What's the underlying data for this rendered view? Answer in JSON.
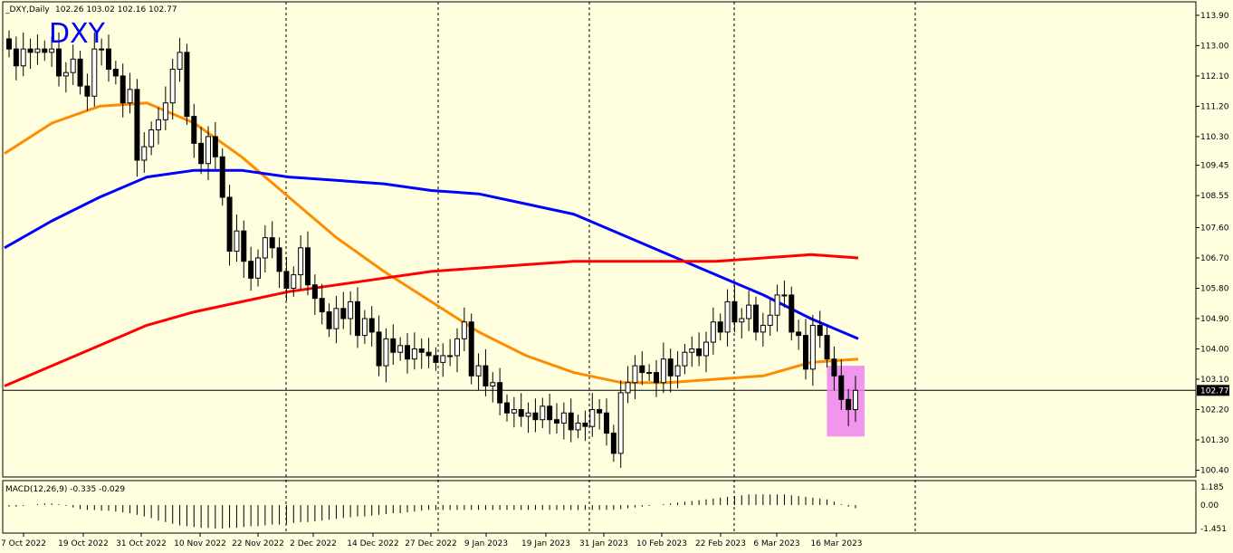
{
  "header": {
    "symbol_tf": "_DXY,Daily",
    "ohlc": "102.26 103.02 102.16 102.77",
    "big_symbol": "DXY"
  },
  "indicator": {
    "label": "MACD(12,26,9) -0.335 -0.029",
    "ticks": [
      "1.185",
      "0.00",
      "-1.451"
    ]
  },
  "colors": {
    "background": "#ffffe0",
    "ma_fast": "#ff8c00",
    "ma_mid": "#0000ff",
    "ma_slow": "#ff0000",
    "highlight": "#ee82ee",
    "current_price_badge": "#000000"
  },
  "chart_data": {
    "type": "candlestick",
    "title": "DXY",
    "timeframe": "Daily",
    "x_ticks": [
      "7 Oct 2022",
      "19 Oct 2022",
      "31 Oct 2022",
      "10 Nov 2022",
      "22 Nov 2022",
      "2 Dec 2022",
      "14 Dec 2022",
      "27 Dec 2022",
      "9 Jan 2023",
      "19 Jan 2023",
      "31 Jan 2023",
      "10 Feb 2023",
      "22 Feb 2023",
      "6 Mar 2023",
      "16 Mar 2023"
    ],
    "y_ticks": [
      "113.90",
      "113.00",
      "112.10",
      "111.20",
      "110.30",
      "109.45",
      "108.55",
      "107.60",
      "106.70",
      "105.80",
      "104.90",
      "104.00",
      "103.10",
      "102.20",
      "101.30",
      "100.40"
    ],
    "ylim": [
      100.2,
      114.3
    ],
    "current_price": "102.77",
    "close": [
      112.9,
      112.4,
      112.9,
      112.8,
      112.9,
      112.8,
      112.9,
      112.1,
      112.2,
      112.6,
      111.8,
      111.5,
      112.9,
      112.9,
      112.3,
      112.1,
      111.3,
      111.7,
      109.6,
      110.0,
      110.5,
      110.8,
      111.3,
      112.3,
      112.8,
      110.9,
      110.1,
      109.5,
      110.3,
      109.7,
      108.5,
      106.9,
      107.5,
      106.6,
      106.1,
      106.7,
      107.3,
      107.0,
      106.3,
      105.8,
      106.2,
      107.0,
      105.9,
      105.5,
      105.1,
      104.6,
      105.2,
      104.9,
      105.4,
      104.4,
      104.9,
      104.5,
      103.5,
      104.3,
      103.9,
      104.1,
      103.7,
      104.0,
      103.9,
      103.8,
      103.6,
      103.8,
      103.8,
      104.3,
      104.8,
      103.2,
      103.5,
      102.9,
      103.0,
      102.4,
      102.1,
      102.2,
      102.0,
      102.1,
      101.9,
      102.3,
      101.9,
      101.8,
      102.1,
      101.6,
      101.8,
      101.7,
      102.2,
      102.1,
      101.5,
      100.9,
      102.7,
      103.0,
      103.5,
      103.3,
      103.3,
      103.0,
      103.7,
      103.2,
      103.5,
      103.9,
      104.0,
      103.8,
      104.2,
      104.8,
      104.5,
      105.4,
      104.8,
      104.9,
      105.3,
      104.5,
      104.7,
      105.0,
      105.6,
      105.6,
      104.5,
      104.4,
      103.4,
      104.7,
      104.4,
      103.7,
      103.2,
      102.5,
      102.2,
      102.77
    ],
    "series": [
      {
        "name": "MA fast (orange)",
        "values": [
          109.8,
          110.7,
          111.2,
          111.3,
          110.7,
          109.7,
          108.5,
          107.3,
          106.3,
          105.4,
          104.5,
          103.8,
          103.3,
          103.0,
          103.0,
          103.1,
          103.2,
          103.6,
          103.7
        ]
      },
      {
        "name": "MA mid (blue)",
        "values": [
          107.0,
          107.8,
          108.5,
          109.1,
          109.3,
          109.3,
          109.1,
          109.0,
          108.9,
          108.7,
          108.6,
          108.3,
          108.0,
          107.4,
          106.8,
          106.2,
          105.6,
          104.9,
          104.3
        ]
      },
      {
        "name": "MA slow (red)",
        "values": [
          102.9,
          103.5,
          104.1,
          104.7,
          105.1,
          105.4,
          105.7,
          105.9,
          106.1,
          106.3,
          106.4,
          106.5,
          106.6,
          106.6,
          106.6,
          106.6,
          106.7,
          106.8,
          106.7
        ]
      }
    ],
    "macd_histogram": [
      -0.1,
      -0.1,
      -0.05,
      0.0,
      0.05,
      0.1,
      0.1,
      0.05,
      -0.05,
      -0.15,
      -0.25,
      -0.3,
      -0.3,
      -0.35,
      -0.35,
      -0.4,
      -0.45,
      -0.5,
      -0.6,
      -0.7,
      -0.8,
      -0.95,
      -1.05,
      -1.15,
      -1.25,
      -1.3,
      -1.35,
      -1.4,
      -1.4,
      -1.45,
      -1.45,
      -1.4,
      -1.4,
      -1.35,
      -1.3,
      -1.3,
      -1.25,
      -1.2,
      -1.2,
      -1.15,
      -1.1,
      -1.05,
      -1.05,
      -1.0,
      -0.95,
      -0.9,
      -0.85,
      -0.8,
      -0.75,
      -0.7,
      -0.7,
      -0.65,
      -0.6,
      -0.55,
      -0.5,
      -0.5,
      -0.45,
      -0.4,
      -0.35,
      -0.3,
      -0.3,
      -0.3,
      -0.3,
      -0.3,
      -0.3,
      -0.3,
      -0.3,
      -0.3,
      -0.3,
      -0.3,
      -0.3,
      -0.3,
      -0.3,
      -0.3,
      -0.3,
      -0.3,
      -0.3,
      -0.3,
      -0.3,
      -0.3,
      -0.3,
      -0.3,
      -0.3,
      -0.3,
      -0.3,
      -0.3,
      -0.25,
      -0.2,
      -0.15,
      -0.1,
      -0.05,
      0.0,
      0.05,
      0.1,
      0.15,
      0.2,
      0.25,
      0.3,
      0.35,
      0.4,
      0.45,
      0.5,
      0.55,
      0.6,
      0.65,
      0.65,
      0.65,
      0.65,
      0.65,
      0.65,
      0.6,
      0.55,
      0.5,
      0.45,
      0.4,
      0.35,
      0.2,
      0.05,
      -0.1,
      -0.2
    ]
  }
}
